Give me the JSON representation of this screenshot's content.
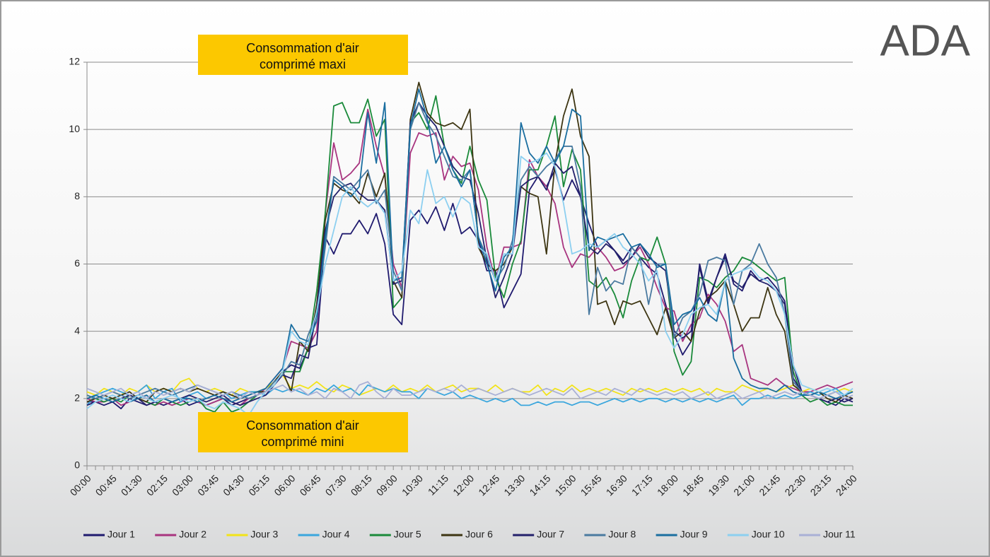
{
  "logo": "ADA",
  "chart_data": {
    "type": "line",
    "annotations": [
      [
        "Consommation d'air",
        "comprimé maxi"
      ],
      [
        "Consommation d'air",
        "comprimé mini"
      ]
    ],
    "categories": [
      "00:00",
      null,
      null,
      "00:45",
      null,
      null,
      "01:30",
      null,
      null,
      "02:15",
      null,
      null,
      "03:00",
      null,
      null,
      "03:45",
      null,
      null,
      "04:30",
      null,
      null,
      "05:15",
      null,
      null,
      "06:00",
      null,
      null,
      "06:45",
      null,
      null,
      "07:30",
      null,
      null,
      "08:15",
      null,
      null,
      "09:00",
      null,
      null,
      "10:30",
      null,
      null,
      "11:15",
      null,
      null,
      "12:00",
      null,
      null,
      "12:45",
      null,
      null,
      "13:30",
      null,
      null,
      "14:15",
      null,
      null,
      "15:00",
      null,
      null,
      "15:45",
      null,
      null,
      "16:30",
      null,
      null,
      "17:15",
      null,
      null,
      "18:00",
      null,
      null,
      "18:45",
      null,
      null,
      "19:30",
      null,
      null,
      "21:00",
      null,
      null,
      "21:45",
      null,
      null,
      "22:30",
      null,
      null,
      "23:15",
      null,
      null,
      "24:00"
    ],
    "ylim": [
      0,
      12
    ],
    "yticks": [
      0,
      2,
      4,
      6,
      8,
      10,
      12
    ],
    "grid": true,
    "legend": "bottom",
    "series": [
      {
        "name": "Jour 1",
        "color": "#1f1a6e",
        "values": [
          1.9,
          1.9,
          1.8,
          1.9,
          1.7,
          2.0,
          1.9,
          1.8,
          1.9,
          1.8,
          1.9,
          2.0,
          1.8,
          1.9,
          1.8,
          1.9,
          2.0,
          1.8,
          1.9,
          2.0,
          2.1,
          2.2,
          2.5,
          2.8,
          3.0,
          2.9,
          3.5,
          3.6,
          6.8,
          6.3,
          6.9,
          6.9,
          7.3,
          6.9,
          7.5,
          6.6,
          4.5,
          4.2,
          7.3,
          7.6,
          7.2,
          7.7,
          7.0,
          7.8,
          6.9,
          7.1,
          6.7,
          5.8,
          5.8,
          4.7,
          5.2,
          5.7,
          8.2,
          8.6,
          8.3,
          8.8,
          7.9,
          8.5,
          8.0,
          7.2,
          6.5,
          6.7,
          6.4,
          6.1,
          6.5,
          6.2,
          5.9,
          5.7,
          4.8,
          3.9,
          3.3,
          3.7,
          6.0,
          4.9,
          5.6,
          6.3,
          5.4,
          5.2,
          5.8,
          5.5,
          5.6,
          5.3,
          4.9,
          3.0,
          2.2,
          2.1,
          2.0,
          1.9,
          1.8,
          2.0,
          1.9
        ]
      },
      {
        "name": "Jour 2",
        "color": "#a8347f",
        "values": [
          2.0,
          1.9,
          1.9,
          2.0,
          1.8,
          1.9,
          2.0,
          1.9,
          1.8,
          1.9,
          1.8,
          1.9,
          2.0,
          1.9,
          1.8,
          1.9,
          2.0,
          1.9,
          1.8,
          2.0,
          2.1,
          2.3,
          2.6,
          2.9,
          3.7,
          3.6,
          3.5,
          4.0,
          7.5,
          9.6,
          8.5,
          8.7,
          9.0,
          10.6,
          9.5,
          8.6,
          6.0,
          5.3,
          9.3,
          9.9,
          9.8,
          9.9,
          8.5,
          9.2,
          8.9,
          9.0,
          8.2,
          6.5,
          5.5,
          6.5,
          6.5,
          6.6,
          9.1,
          8.6,
          8.3,
          7.8,
          6.5,
          5.9,
          6.3,
          6.2,
          6.5,
          6.2,
          5.8,
          5.9,
          6.2,
          6.5,
          6.0,
          5.3,
          4.7,
          4.6,
          3.7,
          4.2,
          4.4,
          5.1,
          4.8,
          4.3,
          3.4,
          3.6,
          2.6,
          2.5,
          2.4,
          2.6,
          2.4,
          2.3,
          2.2,
          2.2,
          2.3,
          2.4,
          2.3,
          2.4,
          2.5
        ]
      },
      {
        "name": "Jour 3",
        "color": "#f2e318",
        "values": [
          2.2,
          2.1,
          2.3,
          2.2,
          2.1,
          2.3,
          2.2,
          2.4,
          2.2,
          2.3,
          2.2,
          2.5,
          2.6,
          2.3,
          2.2,
          2.3,
          2.2,
          2.1,
          2.3,
          2.2,
          2.2,
          2.3,
          2.5,
          2.7,
          2.3,
          2.4,
          2.3,
          2.5,
          2.3,
          2.2,
          2.4,
          2.3,
          2.1,
          2.2,
          2.3,
          2.2,
          2.4,
          2.2,
          2.3,
          2.2,
          2.4,
          2.2,
          2.3,
          2.4,
          2.2,
          2.3,
          2.3,
          2.2,
          2.4,
          2.2,
          2.3,
          2.2,
          2.2,
          2.4,
          2.1,
          2.3,
          2.2,
          2.4,
          2.2,
          2.3,
          2.2,
          2.3,
          2.2,
          2.1,
          2.3,
          2.2,
          2.3,
          2.2,
          2.3,
          2.2,
          2.3,
          2.2,
          2.3,
          2.1,
          2.3,
          2.2,
          2.2,
          2.4,
          2.3,
          2.2,
          2.3,
          2.2,
          2.3,
          2.4,
          2.2,
          2.3,
          2.2,
          2.1,
          2.2,
          2.3,
          2.2
        ]
      },
      {
        "name": "Jour 4",
        "color": "#3aa6dd",
        "values": [
          1.8,
          2.1,
          2.2,
          2.3,
          2.2,
          2.1,
          2.2,
          2.4,
          2.0,
          2.2,
          2.3,
          1.9,
          2.1,
          2.2,
          2.0,
          2.1,
          2.2,
          2.0,
          2.1,
          2.2,
          2.2,
          2.1,
          2.3,
          2.2,
          2.3,
          2.2,
          2.1,
          2.3,
          2.2,
          2.4,
          2.2,
          2.3,
          2.1,
          2.4,
          2.3,
          2.2,
          2.3,
          2.2,
          2.2,
          2.0,
          2.3,
          2.2,
          2.1,
          2.2,
          2.0,
          2.1,
          2.0,
          1.9,
          2.0,
          1.9,
          2.0,
          1.8,
          1.8,
          1.9,
          1.8,
          1.9,
          1.9,
          1.8,
          1.9,
          1.9,
          1.8,
          1.9,
          2.0,
          1.9,
          2.0,
          1.9,
          2.0,
          2.0,
          1.9,
          2.0,
          1.9,
          2.0,
          1.9,
          2.0,
          1.9,
          2.0,
          2.1,
          1.8,
          2.0,
          2.0,
          2.1,
          2.0,
          2.1,
          2.0,
          2.1,
          2.2,
          2.1,
          2.2,
          2.3,
          2.1,
          2.2
        ]
      },
      {
        "name": "Jour 5",
        "color": "#1a8a3a",
        "values": [
          2.1,
          2.0,
          1.9,
          2.0,
          1.9,
          2.1,
          2.0,
          1.9,
          1.8,
          2.0,
          1.9,
          1.8,
          1.9,
          2.0,
          1.7,
          1.6,
          1.9,
          1.6,
          1.7,
          1.9,
          2.1,
          2.2,
          2.4,
          2.8,
          2.8,
          2.8,
          3.5,
          5.2,
          7.5,
          10.7,
          10.8,
          10.2,
          10.2,
          10.9,
          9.8,
          10.3,
          4.7,
          5.0,
          10.2,
          10.5,
          10.0,
          11.0,
          9.5,
          8.8,
          8.4,
          9.5,
          8.5,
          7.9,
          5.6,
          5.0,
          6.0,
          6.7,
          8.8,
          8.8,
          9.5,
          10.4,
          8.3,
          9.4,
          8.8,
          5.5,
          5.3,
          5.6,
          5.1,
          4.4,
          5.5,
          6.2,
          6.1,
          6.8,
          6.0,
          3.4,
          2.7,
          3.1,
          5.6,
          5.5,
          5.3,
          5.6,
          5.8,
          6.2,
          6.1,
          5.9,
          5.7,
          5.5,
          5.6,
          2.8,
          2.1,
          1.9,
          2.0,
          1.8,
          1.9,
          1.8,
          1.8
        ]
      },
      {
        "name": "Jour 6",
        "color": "#3d3512",
        "values": [
          1.9,
          2.0,
          2.1,
          2.0,
          2.1,
          2.2,
          2.0,
          1.9,
          2.2,
          2.3,
          2.2,
          2.3,
          2.2,
          2.3,
          2.2,
          2.1,
          2.2,
          2.1,
          2.0,
          2.1,
          2.2,
          2.2,
          2.5,
          2.8,
          2.2,
          3.7,
          3.4,
          4.8,
          7.3,
          8.4,
          8.2,
          8.1,
          7.8,
          8.7,
          8.0,
          8.7,
          5.5,
          5.0,
          10.3,
          11.4,
          10.5,
          10.2,
          10.1,
          10.2,
          10.0,
          10.6,
          6.5,
          6.0,
          5.8,
          6.0,
          6.5,
          8.3,
          8.1,
          8.0,
          6.3,
          9.0,
          10.4,
          11.2,
          9.8,
          9.2,
          4.8,
          4.9,
          4.2,
          4.9,
          4.8,
          4.9,
          4.4,
          3.9,
          4.7,
          3.8,
          4.0,
          3.7,
          4.6,
          5.0,
          5.2,
          5.5,
          4.8,
          4.0,
          4.4,
          4.4,
          5.3,
          4.5,
          4.0,
          2.4,
          2.2,
          2.1,
          2.2,
          2.0,
          1.9,
          2.1,
          2.0
        ]
      },
      {
        "name": "Jour 7",
        "color": "#23206b",
        "values": [
          1.8,
          1.9,
          2.0,
          1.9,
          2.0,
          2.1,
          2.0,
          1.8,
          1.9,
          2.0,
          1.9,
          2.0,
          2.1,
          2.0,
          1.9,
          2.0,
          2.1,
          1.9,
          1.8,
          1.9,
          2.0,
          2.1,
          2.4,
          2.7,
          2.6,
          3.3,
          3.2,
          4.6,
          7.0,
          8.0,
          8.3,
          8.4,
          8.1,
          7.9,
          7.9,
          7.6,
          5.4,
          5.5,
          10.2,
          10.8,
          10.4,
          10.1,
          9.5,
          8.9,
          8.6,
          8.5,
          7.5,
          6.1,
          5.0,
          5.6,
          6.3,
          8.3,
          8.5,
          8.6,
          8.2,
          9.0,
          8.7,
          8.9,
          8.0,
          6.5,
          6.3,
          6.6,
          6.4,
          6.0,
          6.2,
          6.6,
          6.2,
          6.0,
          5.8,
          4.0,
          3.8,
          4.0,
          5.9,
          4.8,
          5.6,
          6.2,
          5.5,
          5.3,
          5.7,
          5.5,
          5.4,
          5.2,
          4.8,
          2.6,
          2.2,
          2.1,
          2.0,
          1.9,
          2.0,
          1.9,
          2.0
        ]
      },
      {
        "name": "Jour 8",
        "color": "#4a7aa0",
        "values": [
          2.1,
          2.0,
          2.1,
          2.2,
          2.1,
          2.0,
          2.1,
          2.2,
          2.3,
          2.2,
          2.1,
          2.2,
          2.3,
          2.4,
          2.3,
          2.2,
          2.1,
          2.2,
          2.1,
          2.0,
          2.1,
          2.2,
          2.5,
          2.7,
          3.1,
          3.0,
          3.9,
          4.5,
          6.5,
          8.6,
          8.4,
          8.2,
          8.5,
          8.8,
          7.8,
          8.2,
          5.8,
          5.2,
          10.0,
          10.8,
          10.2,
          9.8,
          9.2,
          8.6,
          8.5,
          8.8,
          6.8,
          6.2,
          5.5,
          5.9,
          6.7,
          8.5,
          8.9,
          8.6,
          8.9,
          9.1,
          9.5,
          9.5,
          8.3,
          4.5,
          5.9,
          5.2,
          5.5,
          5.4,
          6.5,
          6.2,
          4.8,
          6.0,
          6.0,
          3.8,
          4.4,
          4.6,
          5.1,
          6.1,
          6.2,
          6.1,
          4.8,
          5.8,
          6.0,
          6.6,
          6.0,
          5.6,
          4.5,
          2.5,
          2.2,
          2.1,
          2.0,
          2.1,
          2.2,
          2.1,
          2.2
        ]
      },
      {
        "name": "Jour 9",
        "color": "#1a6ea0",
        "values": [
          2.0,
          2.1,
          2.0,
          1.9,
          2.0,
          1.9,
          2.0,
          2.1,
          1.9,
          2.0,
          1.9,
          2.0,
          2.0,
          1.9,
          2.0,
          2.1,
          2.0,
          1.9,
          2.0,
          2.1,
          2.2,
          2.3,
          2.6,
          2.9,
          4.2,
          3.8,
          3.7,
          4.3,
          6.8,
          8.5,
          8.3,
          8.0,
          8.3,
          10.5,
          9.0,
          10.8,
          5.5,
          5.6,
          10.1,
          11.2,
          10.3,
          9.0,
          9.5,
          8.8,
          8.3,
          8.8,
          6.8,
          6.0,
          5.2,
          6.2,
          6.5,
          10.2,
          9.3,
          9.0,
          9.5,
          9.0,
          9.5,
          10.6,
          10.4,
          6.4,
          6.8,
          6.7,
          6.8,
          6.9,
          6.5,
          6.6,
          6.3,
          5.9,
          6.0,
          4.2,
          4.5,
          4.6,
          5.0,
          4.5,
          4.3,
          5.5,
          3.2,
          2.6,
          2.4,
          2.3,
          2.3,
          2.2,
          2.4,
          2.2,
          2.1,
          2.1,
          2.2,
          2.1,
          2.0,
          2.1,
          2.2
        ]
      },
      {
        "name": "Jour 10",
        "color": "#8ccff0",
        "values": [
          1.7,
          1.9,
          2.0,
          2.1,
          2.0,
          1.9,
          2.1,
          2.0,
          1.9,
          2.0,
          2.1,
          2.0,
          1.9,
          2.0,
          1.8,
          1.7,
          1.9,
          1.8,
          1.7,
          1.5,
          1.9,
          2.2,
          2.4,
          2.8,
          4.0,
          3.7,
          3.6,
          4.6,
          6.0,
          7.0,
          8.0,
          8.3,
          7.9,
          7.7,
          7.9,
          7.5,
          5.5,
          5.8,
          7.6,
          7.2,
          8.8,
          7.8,
          8.0,
          7.4,
          8.0,
          7.8,
          6.5,
          6.3,
          5.5,
          6.3,
          6.3,
          9.2,
          9.0,
          9.1,
          9.3,
          8.9,
          7.8,
          6.3,
          6.4,
          6.6,
          6.5,
          6.7,
          6.9,
          6.5,
          6.3,
          6.0,
          5.5,
          5.8,
          4.0,
          3.5,
          3.9,
          4.5,
          4.7,
          4.8,
          4.5,
          5.5,
          5.7,
          5.8,
          5.9,
          5.6,
          5.5,
          5.2,
          4.5,
          3.0,
          2.4,
          2.3,
          2.2,
          2.3,
          2.2,
          2.1,
          2.3
        ]
      },
      {
        "name": "Jour 11",
        "color": "#a9b0d6",
        "values": [
          2.3,
          2.2,
          2.1,
          2.2,
          2.3,
          2.1,
          2.2,
          2.0,
          2.2,
          2.1,
          2.2,
          2.3,
          2.2,
          2.4,
          2.3,
          2.2,
          2.1,
          2.2,
          2.0,
          2.2,
          2.1,
          2.2,
          2.3,
          2.4,
          2.2,
          2.3,
          2.1,
          2.2,
          2.0,
          2.3,
          2.2,
          2.0,
          2.4,
          2.5,
          2.2,
          2.0,
          2.3,
          2.1,
          2.1,
          2.2,
          2.3,
          2.2,
          2.3,
          2.2,
          2.4,
          2.2,
          2.3,
          2.2,
          2.1,
          2.2,
          2.3,
          2.2,
          2.1,
          2.2,
          2.3,
          2.2,
          2.1,
          2.3,
          2.0,
          2.1,
          2.2,
          2.1,
          2.3,
          2.2,
          2.1,
          2.3,
          2.2,
          2.1,
          2.2,
          2.1,
          2.2,
          2.0,
          2.1,
          2.2,
          2.0,
          2.1,
          2.2,
          2.0,
          2.1,
          2.2,
          2.0,
          2.1,
          2.2,
          2.1,
          2.2,
          2.1,
          2.0,
          2.1,
          2.2,
          2.0,
          2.1
        ]
      }
    ]
  }
}
